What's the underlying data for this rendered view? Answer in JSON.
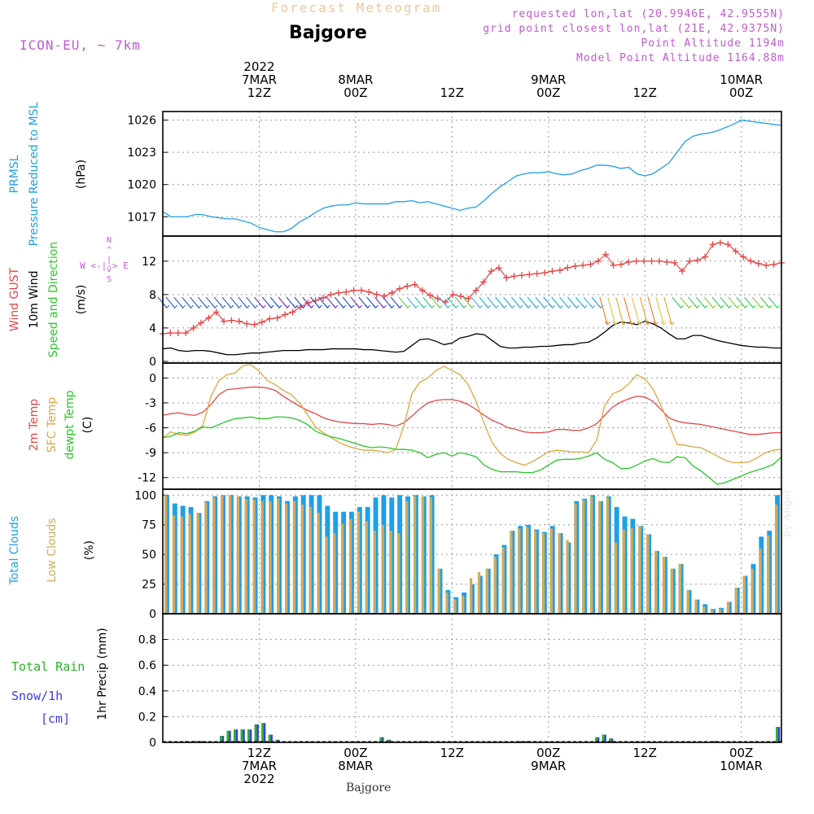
{
  "header": {
    "subtitle": "Forecast Meteogram",
    "title": "Bajgore",
    "model": "ICON-EU, ~ 7km",
    "requested": "requested lon,lat (20.9946E, 42.9555N)",
    "grid_point": "grid point closest lon,lat (21E, 42.9375N)",
    "point_altitude": "Point Altitude 1194m",
    "model_altitude": "Model Point Altitude 1164.88m"
  },
  "bottom_label": "Bajgore",
  "watermark": "by Angel",
  "colors": {
    "pressure": "#1ea0e6",
    "gust": "#e64646",
    "wind": "#000000",
    "temp2m": "#e64646",
    "sfc": "#e0a640",
    "dewpt": "#28c828",
    "total_clouds": "#1ea0e6",
    "low_clouds": "#d2aa5a",
    "rain": "#28b428",
    "snow": "#3c3cdc",
    "label_purple": "#c05ad0"
  },
  "time_axis": {
    "ticks": [
      {
        "t": 12,
        "top": [
          "2022",
          "7MAR",
          "12Z"
        ],
        "bottom": [
          "12Z",
          "7MAR",
          "2022"
        ]
      },
      {
        "t": 24,
        "top": [
          "8MAR",
          "00Z"
        ],
        "bottom": [
          "00Z",
          "8MAR"
        ]
      },
      {
        "t": 36,
        "top": [
          "12Z"
        ],
        "bottom": [
          "12Z"
        ]
      },
      {
        "t": 48,
        "top": [
          "9MAR",
          "00Z"
        ],
        "bottom": [
          "00Z",
          "9MAR"
        ]
      },
      {
        "t": 60,
        "top": [
          "12Z"
        ],
        "bottom": [
          "12Z"
        ]
      },
      {
        "t": 72,
        "top": [
          "10MAR",
          "00Z"
        ],
        "bottom": [
          "00Z",
          "10MAR"
        ]
      }
    ]
  },
  "chart_data": [
    {
      "type": "line",
      "ylabel_lines": [
        "PRMSL",
        "Pressure Reduced to MSL",
        "(hPa)"
      ],
      "yticks": [
        1017,
        1020,
        1023,
        1026
      ],
      "ylim": [
        1015.2,
        1026.8
      ],
      "grid": true,
      "series": [
        {
          "values": [
            1017.5,
            1017.0,
            1017.0,
            1017.0,
            1017.2,
            1017.2,
            1017.0,
            1016.9,
            1016.8,
            1016.8,
            1016.6,
            1016.4,
            1016.0,
            1015.8,
            1015.6,
            1015.6,
            1015.9,
            1016.5,
            1016.9,
            1017.4,
            1017.8,
            1018.0,
            1018.1,
            1018.1,
            1018.3,
            1018.2,
            1018.2,
            1018.2,
            1018.2,
            1018.4,
            1018.4,
            1018.5,
            1018.3,
            1018.4,
            1018.2,
            1018.0,
            1017.8,
            1017.6,
            1017.8,
            1017.9,
            1018.5,
            1019.2,
            1019.8,
            1020.3,
            1020.8,
            1021.0,
            1021.1,
            1021.1,
            1021.2,
            1021.0,
            1020.9,
            1021.0,
            1021.3,
            1021.5,
            1021.8,
            1021.8,
            1021.7,
            1021.5,
            1021.6,
            1021.0,
            1020.8,
            1021.0,
            1021.5,
            1022.0,
            1023.0,
            1024.0,
            1024.5,
            1024.7,
            1024.8,
            1025.0,
            1025.3,
            1025.6,
            1026.0,
            1025.9,
            1025.8,
            1025.7,
            1025.6,
            1025.5
          ]
        }
      ]
    },
    {
      "type": "line",
      "ylabel_lines": [
        "Wind GUST",
        "10m Wind",
        "Speed and Direction",
        "(m/s)"
      ],
      "compass": "W <-|-> E",
      "compass_vertical": [
        "N",
        "^",
        "|",
        "v",
        "S"
      ],
      "yticks": [
        0,
        4,
        8,
        12
      ],
      "ylim": [
        -0.2,
        15
      ],
      "grid": true,
      "series": [
        {
          "values": [
            3.3,
            3.4,
            3.4,
            3.4,
            4.0,
            4.6,
            5.2,
            5.9,
            4.8,
            4.9,
            4.8,
            4.5,
            4.4,
            4.7,
            5.1,
            5.2,
            5.6,
            5.9,
            6.5,
            7.0,
            7.3,
            7.6,
            8.0,
            8.2,
            8.3,
            8.5,
            8.5,
            8.3,
            8.0,
            7.8,
            8.2,
            8.7,
            9.0,
            9.2,
            8.5,
            7.9,
            7.5,
            7.1,
            8.0,
            7.8,
            7.5,
            8.5,
            9.5,
            10.8,
            11.2,
            10.0,
            10.2,
            10.3,
            10.4,
            10.5,
            10.6,
            10.8,
            10.9,
            11.2,
            11.4,
            11.5,
            11.6,
            12.0,
            12.8,
            11.5,
            11.6,
            11.9,
            12.0,
            12.0,
            12.0,
            12.0,
            11.9,
            11.8,
            10.8,
            12.0,
            12.1,
            12.5,
            14.0,
            14.2,
            14.0,
            13.2,
            12.5,
            12.0,
            11.7,
            11.5,
            11.6,
            11.8
          ]
        },
        {
          "values": [
            1.5,
            1.6,
            1.3,
            1.2,
            1.3,
            1.3,
            1.2,
            1.0,
            0.8,
            0.8,
            0.9,
            1.0,
            1.0,
            1.1,
            1.2,
            1.3,
            1.3,
            1.3,
            1.4,
            1.4,
            1.4,
            1.5,
            1.5,
            1.5,
            1.5,
            1.4,
            1.4,
            1.3,
            1.2,
            1.1,
            1.2,
            1.9,
            2.6,
            2.7,
            2.4,
            2.0,
            2.2,
            2.8,
            3.0,
            3.3,
            3.2,
            2.5,
            1.8,
            1.6,
            1.6,
            1.7,
            1.7,
            1.8,
            1.8,
            1.9,
            2.0,
            2.0,
            2.2,
            2.3,
            2.8,
            3.5,
            4.3,
            4.7,
            4.6,
            4.4,
            4.8,
            4.5,
            4.0,
            3.3,
            2.7,
            2.7,
            3.1,
            3.1,
            2.8,
            2.5,
            2.3,
            2.1,
            1.9,
            1.8,
            1.7,
            1.7,
            1.6,
            1.6
          ]
        }
      ]
    },
    {
      "type": "line",
      "ylabel_lines": [
        "2m Temp",
        "SFC Temp",
        "dewpt Temp",
        "(C)"
      ],
      "yticks": [
        -12,
        -9,
        -6,
        -3,
        0
      ],
      "ylim": [
        -13.4,
        1.8
      ],
      "grid": true,
      "series": [
        {
          "values": [
            -4.5,
            -4.3,
            -4.2,
            -4.4,
            -4.5,
            -4.1,
            -3.2,
            -2.0,
            -1.4,
            -1.3,
            -1.2,
            -1.1,
            -1.1,
            -1.2,
            -1.5,
            -2.2,
            -2.8,
            -3.4,
            -3.9,
            -4.3,
            -4.8,
            -5.1,
            -5.3,
            -5.4,
            -5.5,
            -5.5,
            -5.6,
            -5.5,
            -5.6,
            -5.8,
            -5.4,
            -4.6,
            -3.7,
            -3.0,
            -2.7,
            -2.6,
            -2.6,
            -2.8,
            -3.2,
            -3.8,
            -4.5,
            -5.1,
            -5.5,
            -6.0,
            -6.2,
            -6.5,
            -6.6,
            -6.6,
            -6.5,
            -6.2,
            -6.2,
            -6.3,
            -6.3,
            -6.0,
            -5.5,
            -4.5,
            -3.5,
            -2.9,
            -2.5,
            -2.2,
            -2.3,
            -2.8,
            -3.8,
            -4.8,
            -5.2,
            -5.4,
            -5.5,
            -5.6,
            -5.8,
            -6.0,
            -6.2,
            -6.4,
            -6.6,
            -6.8,
            -6.8,
            -6.7,
            -6.6,
            -6.6
          ]
        },
        {
          "values": [
            -7.2,
            -6.5,
            -6.8,
            -6.9,
            -6.5,
            -5.7,
            -2.2,
            -0.3,
            0.4,
            0.6,
            1.5,
            1.6,
            0.8,
            -0.3,
            -0.8,
            -1.5,
            -2.0,
            -3.0,
            -4.4,
            -5.9,
            -6.6,
            -7.2,
            -7.8,
            -8.2,
            -8.5,
            -8.7,
            -8.7,
            -8.8,
            -9.0,
            -8.6,
            -5.8,
            -1.9,
            -0.5,
            0.0,
            0.9,
            1.4,
            0.9,
            0.4,
            -0.8,
            -2.8,
            -5.5,
            -7.8,
            -9.1,
            -9.8,
            -10.2,
            -10.5,
            -10.1,
            -9.5,
            -8.9,
            -8.7,
            -8.8,
            -8.9,
            -8.9,
            -9.0,
            -7.5,
            -3.3,
            -1.9,
            -1.5,
            -0.7,
            0.4,
            -0.1,
            -1.3,
            -3.3,
            -5.6,
            -8.0,
            -8.1,
            -8.3,
            -8.4,
            -8.9,
            -9.4,
            -9.9,
            -10.2,
            -10.2,
            -10.1,
            -9.6,
            -9.0,
            -8.7,
            -8.6
          ]
        },
        {
          "values": [
            -7.2,
            -7.0,
            -6.6,
            -6.7,
            -6.4,
            -5.9,
            -6.0,
            -5.6,
            -5.2,
            -4.9,
            -4.8,
            -4.7,
            -4.9,
            -4.9,
            -4.7,
            -4.7,
            -4.8,
            -5.1,
            -5.6,
            -6.4,
            -6.8,
            -7.1,
            -7.3,
            -7.6,
            -7.9,
            -8.2,
            -8.4,
            -8.3,
            -8.4,
            -8.6,
            -8.6,
            -8.7,
            -9.0,
            -9.6,
            -9.2,
            -9.0,
            -9.4,
            -9.0,
            -9.2,
            -9.5,
            -10.5,
            -11.0,
            -11.3,
            -11.3,
            -11.3,
            -11.4,
            -11.4,
            -11.1,
            -10.5,
            -9.9,
            -9.8,
            -9.8,
            -9.7,
            -9.4,
            -9.0,
            -9.8,
            -10.2,
            -10.9,
            -10.9,
            -10.5,
            -10.0,
            -9.7,
            -10.1,
            -10.2,
            -9.5,
            -9.6,
            -10.6,
            -11.2,
            -12.0,
            -12.8,
            -12.6,
            -12.2,
            -11.8,
            -11.4,
            -11.1,
            -10.8,
            -10.4,
            -9.5
          ]
        }
      ]
    },
    {
      "type": "bar",
      "ylabel_lines": [
        "Total Clouds",
        "Low Clouds",
        "(%)"
      ],
      "yticks": [
        0,
        25,
        50,
        75,
        100
      ],
      "ylim": [
        0,
        105
      ],
      "grid": true,
      "series": [
        {
          "values": [
            100,
            93,
            91,
            90,
            85,
            95,
            99,
            100,
            100,
            99,
            99,
            98,
            100,
            100,
            99,
            95,
            99,
            100,
            100,
            100,
            91,
            86,
            86,
            86,
            90,
            90,
            98,
            100,
            98,
            100,
            99,
            100,
            99,
            100,
            38,
            20,
            14,
            18,
            25,
            32,
            38,
            50,
            58,
            70,
            74,
            75,
            71,
            69,
            74,
            68,
            60,
            95,
            97,
            100,
            95,
            99,
            90,
            82,
            80,
            74,
            67,
            53,
            48,
            38,
            42,
            20,
            12,
            8,
            4,
            5,
            10,
            22,
            32,
            42,
            65,
            70,
            100
          ]
        },
        {
          "values": [
            100,
            83,
            82,
            84,
            85,
            94,
            98,
            100,
            100,
            99,
            97,
            96,
            95,
            95,
            97,
            93,
            95,
            92,
            90,
            85,
            65,
            68,
            76,
            80,
            86,
            78,
            70,
            75,
            70,
            68,
            95,
            99,
            99,
            98,
            38,
            18,
            12,
            15,
            30,
            35,
            38,
            48,
            56,
            70,
            72,
            73,
            70,
            68,
            72,
            68,
            62,
            93,
            96,
            99,
            95,
            98,
            60,
            71,
            72,
            74,
            67,
            53,
            48,
            38,
            42,
            20,
            12,
            6,
            3,
            4,
            10,
            22,
            32,
            38,
            55,
            66,
            92
          ]
        }
      ]
    },
    {
      "type": "bar",
      "ylabel_lines": [
        "1hr Precip (mm)"
      ],
      "left_labels": [
        "Total  Rain",
        "Snow/1h",
        "[cm]"
      ],
      "yticks": [
        0,
        0.2,
        0.4,
        0.6,
        0.8
      ],
      "ylim": [
        0,
        1.0
      ],
      "grid": true,
      "series": [
        {
          "values": [
            0,
            0,
            0,
            0.01,
            0.01,
            0.01,
            0,
            0,
            0.05,
            0.09,
            0.1,
            0.1,
            0.1,
            0.14,
            0.15,
            0.06,
            0.02,
            0,
            0,
            0,
            0,
            0,
            0,
            0,
            0,
            0,
            0,
            0,
            0,
            0,
            0,
            0.04,
            0.02,
            0,
            0,
            0,
            0,
            0.01,
            0,
            0,
            0,
            0,
            0,
            0,
            0,
            0,
            0,
            0,
            0,
            0,
            0,
            0.01,
            0.01,
            0,
            0,
            0,
            0,
            0,
            0,
            0,
            0,
            0,
            0.04,
            0.06,
            0.03,
            0,
            0,
            0,
            0,
            0,
            0,
            0,
            0,
            0,
            0,
            0,
            0,
            0,
            0,
            0.01,
            0,
            0,
            0,
            0,
            0,
            0,
            0,
            0,
            0.12
          ]
        },
        {
          "values": [
            0,
            0,
            0,
            0.01,
            0.01,
            0.01,
            0,
            0,
            0.05,
            0.09,
            0.1,
            0.1,
            0.1,
            0.14,
            0.15,
            0.06,
            0.02,
            0,
            0,
            0,
            0,
            0,
            0,
            0,
            0,
            0,
            0,
            0,
            0,
            0,
            0,
            0.04,
            0.02,
            0,
            0,
            0,
            0,
            0.01,
            0,
            0,
            0,
            0,
            0,
            0,
            0,
            0,
            0,
            0,
            0,
            0,
            0,
            0.01,
            0.01,
            0,
            0,
            0,
            0,
            0,
            0,
            0,
            0,
            0,
            0.04,
            0.06,
            0.03,
            0,
            0,
            0,
            0,
            0,
            0,
            0,
            0,
            0,
            0,
            0,
            0,
            0,
            0,
            0.01,
            0,
            0,
            0,
            0,
            0,
            0,
            0,
            0,
            0.12
          ]
        }
      ]
    }
  ]
}
